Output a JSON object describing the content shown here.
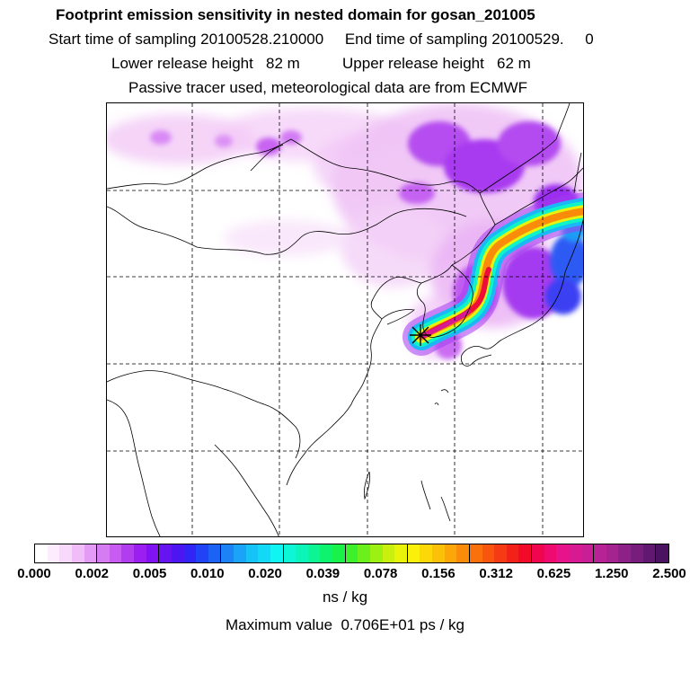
{
  "header": {
    "title": "Footprint emission sensitivity in nested domain for gosan_201005",
    "sampling_line": "Start time of sampling 20100528.210000     End time of sampling 20100529.     0",
    "release_line": "Lower release height   82 m          Upper release height   62 m",
    "tracer_line": "Passive tracer used, meteorological data are from ECMWF"
  },
  "colorbar": {
    "tick_labels": [
      "0.000",
      "0.002",
      "0.005",
      "0.010",
      "0.020",
      "0.039",
      "0.078",
      "0.156",
      "0.312",
      "0.625",
      "1.250",
      "2.500"
    ],
    "colors": [
      "#ffffff",
      "#fcecfd",
      "#f8d8fb",
      "#f1bdf8",
      "#e49bf5",
      "#d67cf3",
      "#c85bf1",
      "#b23cef",
      "#9a1ff0",
      "#8012f3",
      "#6714f2",
      "#4c16f2",
      "#3025f5",
      "#2044f5",
      "#1b63f5",
      "#1c82f6",
      "#1aa3f7",
      "#15c3f6",
      "#12daf6",
      "#0ff5f2",
      "#0df6d6",
      "#0cf5b8",
      "#0cf494",
      "#0ef36d",
      "#18f24a",
      "#3cf12b",
      "#6cf01b",
      "#9cf012",
      "#c8f00c",
      "#eaf30a",
      "#fbf00a",
      "#fcd809",
      "#fcc009",
      "#fba709",
      "#fb8c0a",
      "#fa710c",
      "#f8560f",
      "#f53b14",
      "#f32219",
      "#f20a28",
      "#f0064e",
      "#ef0a6f",
      "#e7138a",
      "#d81a92",
      "#c91f96",
      "#b72294",
      "#a4238f",
      "#8e2187",
      "#771d7c",
      "#601870",
      "#4c1262"
    ],
    "unit": "ns / kg"
  },
  "max_value_text": "Maximum value  0.706E+01 ps / kg",
  "map": {
    "receptor_marker": "asterisk",
    "gridlines": "dashed"
  }
}
